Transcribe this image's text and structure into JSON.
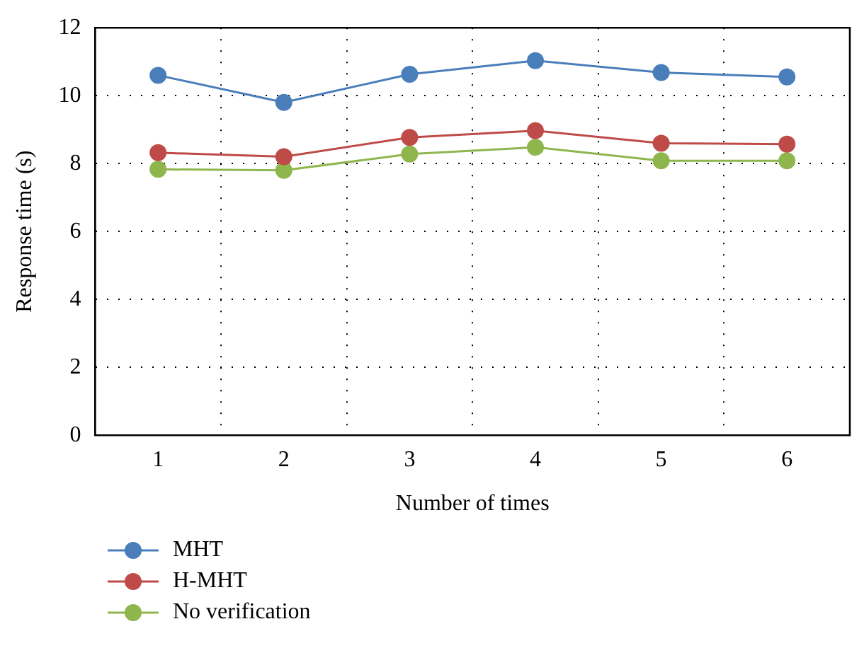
{
  "chart_data": {
    "type": "line",
    "xlabel": "Number of times",
    "ylabel": "Response time (s)",
    "categories": [
      "1",
      "2",
      "3",
      "4",
      "5",
      "6"
    ],
    "ylim": [
      0,
      12
    ],
    "yticks": [
      0,
      2,
      4,
      6,
      8,
      10,
      12
    ],
    "grid": true,
    "legend": "bottom",
    "marker": "circle",
    "line_style": "solid",
    "series": [
      {
        "name": "MHT",
        "color": "#4a7ebb",
        "values": [
          10.6,
          9.8,
          10.63,
          11.03,
          10.68,
          10.55
        ]
      },
      {
        "name": "H-MHT",
        "color": "#be4b48",
        "values": [
          8.32,
          8.2,
          8.77,
          8.97,
          8.6,
          8.57
        ]
      },
      {
        "name": "No verification",
        "color": "#8fb54d",
        "values": [
          7.83,
          7.8,
          8.28,
          8.48,
          8.08,
          8.08
        ]
      }
    ]
  }
}
